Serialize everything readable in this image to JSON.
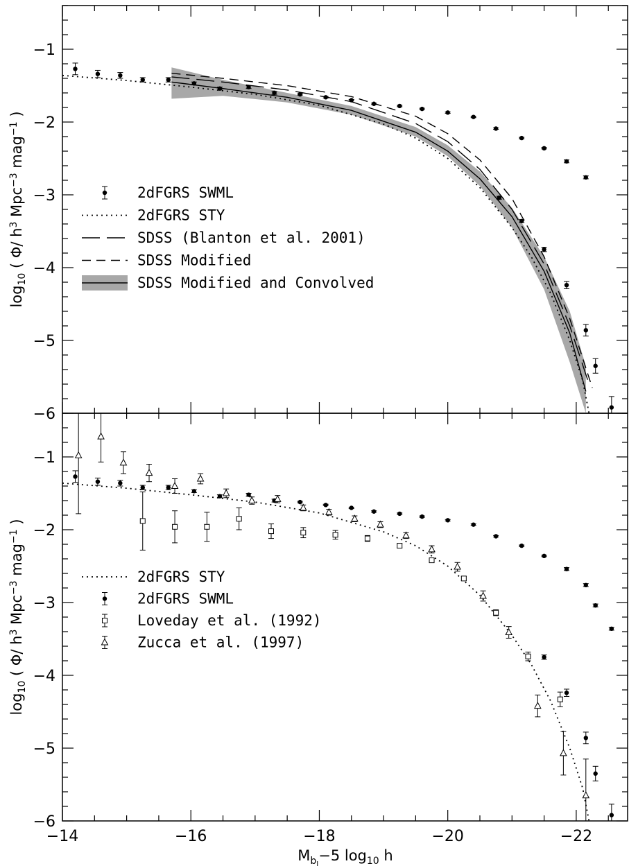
{
  "chart_data": [
    {
      "type": "scatter",
      "panel": "top",
      "xlim": [
        -14,
        -22.8
      ],
      "ylim": [
        -6,
        -0.4
      ],
      "x_reversed": true,
      "ylabel": "log10 ( Φ/ h³ Mpc⁻³ mag⁻¹ )",
      "ylabel_parts": {
        "pre": "log",
        "sub": "10",
        "mid": " ( Φ/ h",
        "sup1": "3",
        "mid2": " Mpc",
        "sup2": "−3",
        "mid3": " mag",
        "sup3": "−1",
        "post": " )"
      },
      "xticks": [
        -14,
        -16,
        -18,
        -20,
        -22
      ],
      "xtick_labels": [
        "−14",
        "−16",
        "−18",
        "−20",
        "−22"
      ],
      "yticks": [
        -1,
        -2,
        -3,
        -4,
        -5,
        -6
      ],
      "ytick_labels": [
        "−1",
        "−2",
        "−3",
        "−4",
        "−5",
        "−6"
      ],
      "legend_placement": "middle-left",
      "legend": [
        {
          "label": "2dFGRS SWML",
          "style": "filled-point"
        },
        {
          "label": "2dFGRS STY",
          "style": "dotted"
        },
        {
          "label": "SDSS (Blanton et al. 2001)",
          "style": "long-dash"
        },
        {
          "label": "SDSS Modified",
          "style": "short-dash"
        },
        {
          "label": "SDSS Modified and Convolved",
          "style": "solid-band"
        }
      ],
      "series": [
        {
          "name": "2dFGRS SWML",
          "marker": "filled-circle",
          "x": [
            -14.2,
            -14.55,
            -14.9,
            -15.25,
            -15.65,
            -16.05,
            -16.45,
            -16.9,
            -17.3,
            -17.7,
            -18.1,
            -18.5,
            -18.85,
            -19.25,
            -19.6,
            -20.0,
            -20.4,
            -20.75,
            -21.15,
            -21.5,
            -21.85,
            -22.15
          ],
          "y": [
            -1.27,
            -1.34,
            -1.36,
            -1.42,
            -1.42,
            -1.47,
            -1.54,
            -1.52,
            -1.6,
            -1.62,
            -1.66,
            -1.7,
            -1.75,
            -1.78,
            -1.82,
            -1.87,
            -1.93,
            -2.09,
            -2.22,
            -2.36,
            -2.54,
            -2.76
          ],
          "yerr": [
            0.08,
            0.05,
            0.04,
            0.03,
            0.03,
            0.02,
            0.02,
            0.02,
            0.02,
            0.01,
            0.01,
            0.01,
            0.01,
            0.01,
            0.01,
            0.01,
            0.01,
            0.01,
            0.01,
            0.01,
            0.02,
            0.02
          ]
        },
        {
          "name": "2dFGRS SWML (bright end)",
          "marker": "filled-circle",
          "x": [
            -20.8,
            -21.15,
            -21.5,
            -21.85,
            -22.15,
            -22.3
          ],
          "y": [
            -3.04,
            -3.36,
            -3.75,
            -4.24,
            -4.86,
            -5.35
          ],
          "yerr": [
            0.02,
            0.02,
            0.03,
            0.05,
            0.08,
            0.1
          ]
        },
        {
          "name": "2dFGRS SWML (last)",
          "marker": "filled-circle",
          "x": [
            -22.55
          ],
          "y": [
            -5.92
          ],
          "yerr": [
            0.15
          ]
        },
        {
          "name": "2dFGRS STY",
          "style": "dotted",
          "x": [
            -14.0,
            -15.0,
            -16.0,
            -17.0,
            -18.0,
            -19.0,
            -19.5,
            -20.0,
            -20.5,
            -21.0,
            -21.3,
            -21.6,
            -21.9,
            -22.1,
            -22.2
          ],
          "y": [
            -1.36,
            -1.43,
            -1.52,
            -1.62,
            -1.77,
            -2.03,
            -2.22,
            -2.5,
            -2.9,
            -3.45,
            -3.85,
            -4.35,
            -5.0,
            -5.55,
            -6.0
          ]
        },
        {
          "name": "SDSS (Blanton et al. 2001)",
          "style": "long-dash",
          "x": [
            -15.7,
            -16.5,
            -17.5,
            -18.5,
            -19.5,
            -20.0,
            -20.5,
            -21.0,
            -21.5,
            -21.9,
            -22.2
          ],
          "y": [
            -1.38,
            -1.45,
            -1.56,
            -1.72,
            -2.02,
            -2.27,
            -2.65,
            -3.2,
            -3.95,
            -4.8,
            -5.6
          ]
        },
        {
          "name": "SDSS Modified",
          "style": "short-dash",
          "x": [
            -15.7,
            -16.5,
            -17.5,
            -18.5,
            -19.5,
            -20.0,
            -20.5,
            -21.0,
            -21.5,
            -21.9,
            -22.25
          ],
          "y": [
            -1.33,
            -1.4,
            -1.5,
            -1.65,
            -1.92,
            -2.16,
            -2.52,
            -3.05,
            -3.85,
            -4.7,
            -5.65
          ]
        },
        {
          "name": "SDSS Modified and Convolved",
          "style": "solid",
          "x": [
            -15.7,
            -16.5,
            -17.5,
            -18.5,
            -19.5,
            -20.0,
            -20.5,
            -21.0,
            -21.5,
            -21.9,
            -22.15
          ],
          "y": [
            -1.45,
            -1.54,
            -1.66,
            -1.84,
            -2.14,
            -2.4,
            -2.78,
            -3.3,
            -4.05,
            -4.9,
            -5.7
          ],
          "band_upper": [
            -1.25,
            -1.42,
            -1.6,
            -1.78,
            -2.07,
            -2.32,
            -2.68,
            -3.18,
            -3.85,
            -4.6,
            -5.35
          ],
          "band_lower": [
            -1.68,
            -1.64,
            -1.73,
            -1.9,
            -2.2,
            -2.47,
            -2.88,
            -3.45,
            -4.3,
            -5.3,
            -6.0
          ]
        }
      ]
    },
    {
      "type": "scatter",
      "panel": "bottom",
      "xlim": [
        -14,
        -22.8
      ],
      "ylim": [
        -6,
        -0.4
      ],
      "x_reversed": true,
      "xlabel": "Mbj − 5 log10 h",
      "xlabel_parts": {
        "pre": "M",
        "sub": "b",
        "sub2": "J",
        "post": "−5 log",
        "sub3": "10",
        "post2": " h"
      },
      "ylabel": "log10 ( Φ/ h³ Mpc⁻³ mag⁻¹ )",
      "legend_placement": "middle-left",
      "legend": [
        {
          "label": "2dFGRS STY",
          "style": "dotted"
        },
        {
          "label": "2dFGRS SWML",
          "style": "filled-point"
        },
        {
          "label": "Loveday et al. (1992)",
          "style": "open-square"
        },
        {
          "label": "Zucca et al. (1997)",
          "style": "open-triangle"
        }
      ],
      "series": [
        {
          "name": "2dFGRS SWML",
          "marker": "filled-circle",
          "x": [
            -14.2,
            -14.55,
            -14.9,
            -15.25,
            -15.65,
            -16.05,
            -16.45,
            -16.9,
            -17.3,
            -17.7,
            -18.1,
            -18.5,
            -18.85,
            -19.25,
            -19.6,
            -20.0,
            -20.4,
            -20.75,
            -21.15,
            -21.5,
            -21.85,
            -22.15,
            -22.3,
            -22.55
          ],
          "y": [
            -1.27,
            -1.34,
            -1.36,
            -1.42,
            -1.42,
            -1.47,
            -1.54,
            -1.52,
            -1.6,
            -1.62,
            -1.66,
            -1.7,
            -1.75,
            -1.78,
            -1.82,
            -1.87,
            -1.93,
            -2.09,
            -2.22,
            -2.36,
            -2.54,
            -2.76,
            -3.04,
            -3.36
          ],
          "yerr": [
            0.08,
            0.05,
            0.04,
            0.03,
            0.03,
            0.02,
            0.02,
            0.02,
            0.02,
            0.01,
            0.01,
            0.01,
            0.01,
            0.01,
            0.01,
            0.01,
            0.01,
            0.01,
            0.01,
            0.01,
            0.02,
            0.02,
            0.02,
            0.02
          ]
        },
        {
          "name": "2dFGRS SWML (bright end)",
          "marker": "filled-circle",
          "x": [
            -21.5,
            -21.85,
            -22.15,
            -22.3,
            -22.55
          ],
          "y": [
            -3.75,
            -4.24,
            -4.86,
            -5.35,
            -5.92
          ],
          "yerr": [
            0.03,
            0.05,
            0.08,
            0.1,
            0.15
          ]
        },
        {
          "name": "Loveday et al. (1992)",
          "marker": "open-square",
          "x": [
            -15.25,
            -15.75,
            -16.25,
            -16.75,
            -17.25,
            -17.75,
            -18.25,
            -18.75,
            -19.25,
            -19.75,
            -20.25,
            -20.75,
            -21.25,
            -21.75
          ],
          "y": [
            -1.88,
            -1.96,
            -1.96,
            -1.85,
            -2.02,
            -2.04,
            -2.07,
            -2.12,
            -2.22,
            -2.42,
            -2.67,
            -3.14,
            -3.74,
            -4.33
          ],
          "yerr": [
            0.4,
            0.22,
            0.2,
            0.15,
            0.1,
            0.07,
            0.06,
            0.04,
            0.03,
            0.03,
            0.03,
            0.04,
            0.06,
            0.1
          ]
        },
        {
          "name": "Zucca et al. (1997)",
          "marker": "open-triangle",
          "x": [
            -14.25,
            -14.6,
            -14.95,
            -15.35,
            -15.75,
            -16.15,
            -16.55,
            -16.95,
            -17.35,
            -17.75,
            -18.15,
            -18.55,
            -18.95,
            -19.35,
            -19.75,
            -20.15,
            -20.55,
            -20.95,
            -21.4,
            -21.8,
            -22.15
          ],
          "y": [
            -0.98,
            -0.72,
            -1.08,
            -1.22,
            -1.4,
            -1.3,
            -1.5,
            -1.6,
            -1.58,
            -1.7,
            -1.76,
            -1.85,
            -1.93,
            -2.08,
            -2.27,
            -2.51,
            -2.91,
            -3.41,
            -4.42,
            -5.07,
            -5.65
          ],
          "yerr": [
            0.8,
            0.35,
            0.15,
            0.12,
            0.1,
            0.07,
            0.06,
            0.05,
            0.05,
            0.04,
            0.04,
            0.04,
            0.04,
            0.04,
            0.05,
            0.06,
            0.07,
            0.08,
            0.15,
            0.3,
            0.5
          ]
        },
        {
          "name": "2dFGRS STY",
          "style": "dotted",
          "x": [
            -14.0,
            -15.0,
            -16.0,
            -17.0,
            -18.0,
            -19.0,
            -19.5,
            -20.0,
            -20.5,
            -21.0,
            -21.3,
            -21.6,
            -21.9,
            -22.1,
            -22.2
          ],
          "y": [
            -1.36,
            -1.43,
            -1.52,
            -1.62,
            -1.77,
            -2.03,
            -2.22,
            -2.5,
            -2.9,
            -3.45,
            -3.85,
            -4.35,
            -5.0,
            -5.55,
            -6.0
          ]
        }
      ]
    }
  ]
}
